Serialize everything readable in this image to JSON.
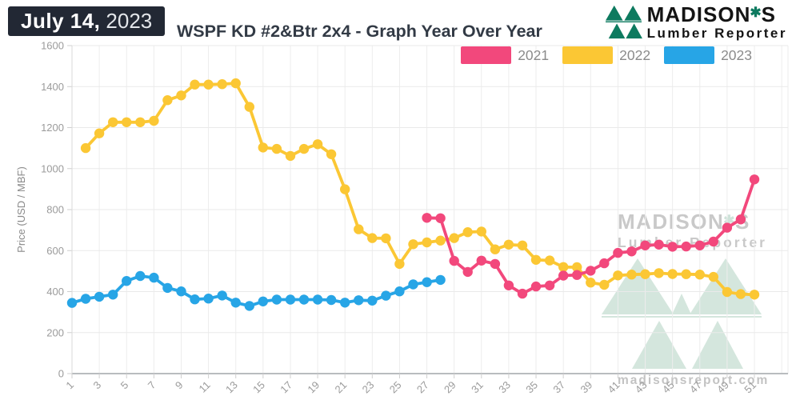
{
  "header": {
    "date_bold": "July 14,",
    "date_year": "2023",
    "title": "WSPF KD #2&Btr 2x4 - Graph Year Over Year"
  },
  "brand": {
    "name_left": "MADISON",
    "name_right": "S",
    "tagline": "Lumber Reporter"
  },
  "icons": {
    "maple_leaf": "✱"
  },
  "legend": {
    "items": [
      {
        "label": "2021",
        "color": "#f2487c"
      },
      {
        "label": "2022",
        "color": "#fbc734"
      },
      {
        "label": "2023",
        "color": "#27a5e6"
      }
    ]
  },
  "watermark": {
    "name_left": "MADISON",
    "name_right": "S",
    "tagline": "Lumber Reporter",
    "url": "madisonsreport.com"
  },
  "chart_data": {
    "type": "line",
    "title": "WSPF KD #2&Btr 2x4 - Graph Year Over Year",
    "xlabel": "",
    "ylabel": "Price (USD / MBF)",
    "ylim": [
      0,
      1600
    ],
    "ytick_step": 200,
    "x_unit": "week of year",
    "xticks": [
      1,
      3,
      5,
      7,
      9,
      11,
      13,
      15,
      17,
      19,
      21,
      23,
      25,
      27,
      29,
      31,
      33,
      35,
      37,
      39,
      41,
      43,
      45,
      47,
      49,
      51
    ],
    "grid": true,
    "legend_position": "top-right",
    "series": [
      {
        "name": "2021",
        "color": "#f2487c",
        "start_week": 27,
        "values": [
          760,
          758,
          550,
          496,
          551,
          535,
          430,
          390,
          425,
          430,
          478,
          481,
          502,
          538,
          589,
          596,
          625,
          629,
          619,
          620,
          625,
          644,
          712,
          752,
          947
        ]
      },
      {
        "name": "2022",
        "color": "#fbc734",
        "start_week": 2,
        "values": [
          1100,
          1172,
          1226,
          1226,
          1226,
          1233,
          1334,
          1357,
          1410,
          1410,
          1412,
          1416,
          1301,
          1103,
          1096,
          1062,
          1096,
          1119,
          1070,
          899,
          704,
          661,
          660,
          535,
          631,
          640,
          649,
          661,
          690,
          693,
          606,
          629,
          625,
          555,
          552,
          520,
          519,
          444,
          433,
          479,
          483,
          485,
          490,
          486,
          485,
          483,
          472,
          398,
          388,
          385
        ]
      },
      {
        "name": "2023",
        "color": "#27a5e6",
        "start_week": 1,
        "values": [
          345,
          365,
          375,
          385,
          452,
          476,
          468,
          418,
          401,
          362,
          366,
          381,
          346,
          330,
          352,
          361,
          361,
          361,
          361,
          359,
          346,
          358,
          356,
          380,
          401,
          435,
          446,
          457
        ]
      }
    ]
  }
}
